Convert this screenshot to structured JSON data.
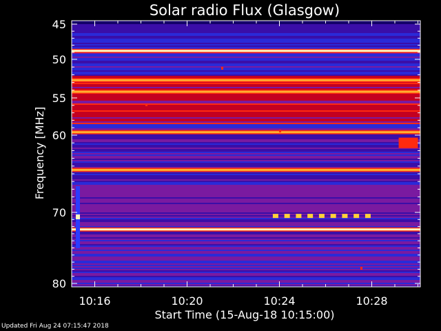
{
  "chart_data": {
    "type": "heatmap",
    "title": "Solar radio Flux (Glasgow)",
    "xlabel": "Start Time (15-Aug-18 10:15:00)",
    "ylabel": "Frequency [MHz]",
    "x_range_minutes": [
      "10:15:00",
      "10:30:00"
    ],
    "y_range_mhz": [
      45,
      80
    ],
    "y_ticks": [
      45,
      50,
      55,
      60,
      70,
      80
    ],
    "x_ticks": [
      "10:16",
      "10:20",
      "10:24",
      "10:28"
    ],
    "y_scale": "nonlinear (stretched toward low frequency)",
    "colormap": [
      "#14006a",
      "#3a0ea8",
      "#2a2ad8",
      "#7a1aa0",
      "#c40020",
      "#ff2a10",
      "#ffb030",
      "#fff6c0"
    ],
    "bright_bands_mhz": [
      {
        "freq": 48.8,
        "intensity": "very high"
      },
      {
        "freq": 52.7,
        "intensity": "high"
      },
      {
        "freq": 54.2,
        "intensity": "high"
      },
      {
        "freq": 59.6,
        "intensity": "high"
      },
      {
        "freq": 64.5,
        "intensity": "high"
      },
      {
        "freq": 72.4,
        "intensity": "very high"
      }
    ],
    "features": [
      {
        "label": "calibration markers",
        "freq": 70.5,
        "start": "10:23:50",
        "end": "10:27:50"
      },
      {
        "label": "drifting emission",
        "freq_range": [
          60.5,
          61.5
        ],
        "start": "10:29:10",
        "end": "10:30:00"
      }
    ]
  },
  "footer": {
    "updated": "Updated Fri Aug 24 07:15:47 2018"
  }
}
